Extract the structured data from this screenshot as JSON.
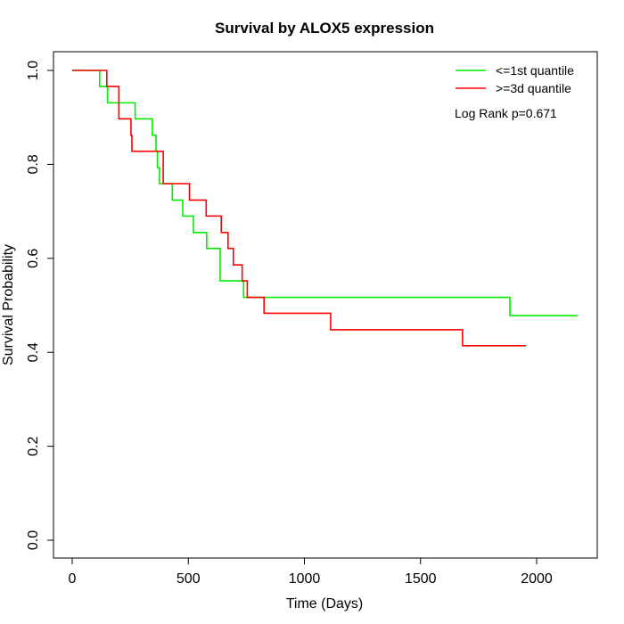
{
  "chart_data": {
    "type": "line",
    "title": "Survival by ALOX5 expression",
    "xlabel": "Time (Days)",
    "ylabel": "Survival Probability",
    "xlim": [
      0,
      2177
    ],
    "ylim": [
      0,
      1
    ],
    "xticks": [
      0,
      500,
      1000,
      1500,
      2000
    ],
    "yticks": [
      0.0,
      0.2,
      0.4,
      0.6,
      0.8,
      1.0
    ],
    "grid": false,
    "legend_position": "top-right",
    "annotation": "Log Rank p=0.671",
    "series": [
      {
        "name": "<=1st quantile",
        "color": "#00ee00",
        "steps": [
          [
            0,
            1.0
          ],
          [
            118,
            0.966
          ],
          [
            152,
            0.931
          ],
          [
            271,
            0.897
          ],
          [
            345,
            0.862
          ],
          [
            361,
            0.828
          ],
          [
            367,
            0.793
          ],
          [
            376,
            0.759
          ],
          [
            431,
            0.724
          ],
          [
            476,
            0.69
          ],
          [
            522,
            0.655
          ],
          [
            579,
            0.621
          ],
          [
            637,
            0.552
          ],
          [
            738,
            0.517
          ],
          [
            1885,
            0.478
          ],
          [
            2177,
            0.478
          ]
        ]
      },
      {
        "name": ">=3d quantile",
        "color": "#ff0000",
        "steps": [
          [
            0,
            1.0
          ],
          [
            149,
            0.966
          ],
          [
            201,
            0.897
          ],
          [
            253,
            0.862
          ],
          [
            257,
            0.828
          ],
          [
            392,
            0.759
          ],
          [
            505,
            0.724
          ],
          [
            577,
            0.69
          ],
          [
            642,
            0.655
          ],
          [
            671,
            0.621
          ],
          [
            694,
            0.586
          ],
          [
            732,
            0.552
          ],
          [
            754,
            0.517
          ],
          [
            826,
            0.483
          ],
          [
            1113,
            0.448
          ],
          [
            1681,
            0.414
          ],
          [
            1954,
            0.414
          ]
        ]
      }
    ]
  }
}
